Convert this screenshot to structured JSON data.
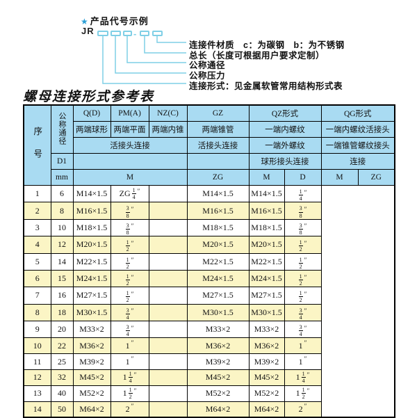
{
  "colors": {
    "header_blue": "#a9dbf2",
    "row_yellow": "#fbf5c5",
    "row_white": "#ffffff",
    "line_cyan": "#7fcfe6",
    "star_blue": "#2b9fd6",
    "border_black": "#000000"
  },
  "diagram": {
    "star_icon": "★",
    "heading": "产品代号示例",
    "code_prefix": "JR",
    "dash": "-",
    "labels": [
      "连接件材质　c：为碳钢　b：为不锈钢",
      "总长（长度可根据用户要求定制）",
      "公称通径",
      "公称压力",
      "连接形式：见金属软管常用结构形式表"
    ]
  },
  "table_title": "螺母连接形式参考表",
  "table": {
    "header": {
      "seq": "序号",
      "nominal_diameter": "公称通径",
      "d1": "D1",
      "mm": "mm",
      "q": "Q(D)",
      "pm": "PM(A)",
      "nz": "NZ(C)",
      "gz": "GZ",
      "qz": "QZ形式",
      "qg": "QG形式",
      "q_desc": "两端球形",
      "pm_desc": "两端平面",
      "nz_desc": "两端内锥",
      "gz_desc": "两端锥管",
      "qz_desc1": "一端内螺纹",
      "qg_desc1": "一端内螺纹活接头",
      "union_conn": "活接头连接",
      "gz_union_conn": "活接头连接",
      "qz_desc2": "一端外螺纹",
      "qg_desc2": "一端锥管螺纹接头",
      "qz_conn": "球形接头连接",
      "qg_conn": "连接",
      "m": "M",
      "zg": "ZG",
      "qz_m": "M",
      "qz_d": "D",
      "qg_m": "M",
      "qg_zg": "ZG"
    },
    "rows": [
      {
        "no": "1",
        "dn": "6",
        "m": "M14×1.5",
        "gz": {
          "pre": "ZG ",
          "n": "1",
          "d": "4",
          "suf": "″"
        },
        "qzm": "",
        "qzd": "M14×1.5",
        "qgm": "M14×1.5",
        "qgzg": {
          "n": "1",
          "d": "4",
          "suf": "″"
        }
      },
      {
        "no": "2",
        "dn": "8",
        "m": "M16×1.5",
        "gz": {
          "n": "3",
          "d": "8",
          "suf": "″"
        },
        "qzm": "",
        "qzd": "M16×1.5",
        "qgm": "M16×1.5",
        "qgzg": {
          "n": "3",
          "d": "8",
          "suf": "″"
        }
      },
      {
        "no": "3",
        "dn": "10",
        "m": "M18×1.5",
        "gz": {
          "n": "3",
          "d": "8",
          "suf": "″"
        },
        "qzm": "",
        "qzd": "M18×1.5",
        "qgm": "M18×1.5",
        "qgzg": {
          "n": "3",
          "d": "8",
          "suf": "″"
        }
      },
      {
        "no": "4",
        "dn": "12",
        "m": "M20×1.5",
        "gz": {
          "n": "1",
          "d": "2",
          "suf": "″"
        },
        "qzm": "",
        "qzd": "M20×1.5",
        "qgm": "M20×1.5",
        "qgzg": {
          "n": "1",
          "d": "2",
          "suf": "″"
        }
      },
      {
        "no": "5",
        "dn": "14",
        "m": "M22×1.5",
        "gz": {
          "n": "1",
          "d": "2",
          "suf": "″"
        },
        "qzm": "",
        "qzd": "M22×1.5",
        "qgm": "M22×1.5",
        "qgzg": {
          "n": "1",
          "d": "2",
          "suf": "″"
        }
      },
      {
        "no": "6",
        "dn": "15",
        "m": "M24×1.5",
        "gz": {
          "n": "1",
          "d": "2",
          "suf": "″"
        },
        "qzm": "",
        "qzd": "M24×1.5",
        "qgm": "M24×1.5",
        "qgzg": {
          "n": "1",
          "d": "2",
          "suf": "″"
        }
      },
      {
        "no": "7",
        "dn": "16",
        "m": "M27×1.5",
        "gz": {
          "n": "1",
          "d": "2",
          "suf": "″"
        },
        "qzm": "",
        "qzd": "M27×1.5",
        "qgm": "M27×1.5",
        "qgzg": {
          "n": "1",
          "d": "2",
          "suf": "″"
        }
      },
      {
        "no": "8",
        "dn": "18",
        "m": "M30×1.5",
        "gz": {
          "n": "3",
          "d": "4",
          "suf": "″"
        },
        "qzm": "",
        "qzd": "M30×1.5",
        "qgm": "M30×1.5",
        "qgzg": {
          "n": "3",
          "d": "4",
          "suf": "″"
        }
      },
      {
        "no": "9",
        "dn": "20",
        "m": "M33×2",
        "gz": {
          "n": "3",
          "d": "4",
          "suf": "″"
        },
        "qzm": "",
        "qzd": "M33×2",
        "qgm": "M33×2",
        "qgzg": {
          "n": "3",
          "d": "4",
          "suf": "″"
        }
      },
      {
        "no": "10",
        "dn": "22",
        "m": "M36×2",
        "gz": {
          "w": "1",
          "suf": "″"
        },
        "qzm": "",
        "qzd": "M36×2",
        "qgm": "M36×2",
        "qgzg": {
          "w": "1",
          "suf": "″"
        }
      },
      {
        "no": "11",
        "dn": "25",
        "m": "M39×2",
        "gz": {
          "w": "1",
          "suf": "″"
        },
        "qzm": "",
        "qzd": "M39×2",
        "qgm": "M39×2",
        "qgzg": {
          "w": "1",
          "suf": "″"
        }
      },
      {
        "no": "12",
        "dn": "32",
        "m": "M45×2",
        "gz": {
          "w": "1",
          "n": "1",
          "d": "4",
          "suf": "″"
        },
        "qzm": "",
        "qzd": "M45×2",
        "qgm": "M45×2",
        "qgzg": {
          "w": "1",
          "n": "1",
          "d": "4",
          "suf": "″"
        }
      },
      {
        "no": "13",
        "dn": "40",
        "m": "M52×2",
        "gz": {
          "w": "1",
          "n": "1",
          "d": "2",
          "suf": "″"
        },
        "qzm": "",
        "qzd": "M52×2",
        "qgm": "M52×2",
        "qgzg": {
          "w": "1",
          "n": "1",
          "d": "2",
          "suf": "″"
        }
      },
      {
        "no": "14",
        "dn": "50",
        "m": "M64×2",
        "gz": {
          "w": "2",
          "suf": "″"
        },
        "qzm": "",
        "qzd": "M64×2",
        "qgm": "M64×2",
        "qgzg": {
          "w": "2",
          "suf": "″"
        }
      }
    ]
  }
}
